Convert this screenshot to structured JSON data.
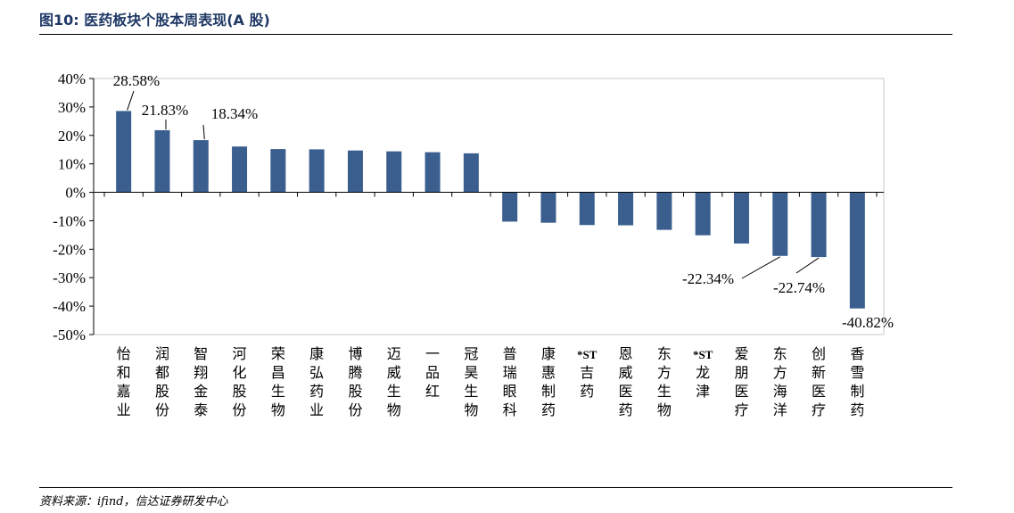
{
  "header": {
    "title": "图10: 医药板块个股本周表现(A 股)"
  },
  "footer": {
    "source": "资料来源：ifind，信达证券研发中心"
  },
  "colors": {
    "bar": "#3a5f8f",
    "title": "#1f3864"
  },
  "chart_data": {
    "type": "bar",
    "categories": [
      "怡和嘉业",
      "润都股份",
      "智翔金泰",
      "河化股份",
      "荣昌生物",
      "康弘药业",
      "博腾股份",
      "迈威生物",
      "一品红",
      "冠昊生物",
      "普瑞眼科",
      "康惠制药",
      "*ST吉药",
      "恩威医药",
      "东方生物",
      "*ST龙津",
      "爱朋医疗",
      "东方海洋",
      "创新医疗",
      "香雪制药"
    ],
    "values": [
      28.58,
      21.83,
      18.34,
      16.1,
      15.2,
      15.1,
      14.7,
      14.4,
      14.1,
      13.7,
      -10.3,
      -10.7,
      -11.5,
      -11.6,
      -13.2,
      -15.1,
      -18.0,
      -22.34,
      -22.74,
      -40.82
    ],
    "data_labels": [
      {
        "index": 0,
        "text": "28.58%"
      },
      {
        "index": 1,
        "text": "21.83%"
      },
      {
        "index": 2,
        "text": "18.34%"
      },
      {
        "index": 17,
        "text": "-22.34%"
      },
      {
        "index": 18,
        "text": "-22.74%"
      },
      {
        "index": 19,
        "text": "-40.82%"
      }
    ],
    "y_ticks": [
      "40%",
      "30%",
      "20%",
      "10%",
      "0%",
      "-10%",
      "-20%",
      "-30%",
      "-40%",
      "-50%"
    ],
    "ylim": [
      -50,
      40
    ],
    "grid": false,
    "legend": "none"
  }
}
